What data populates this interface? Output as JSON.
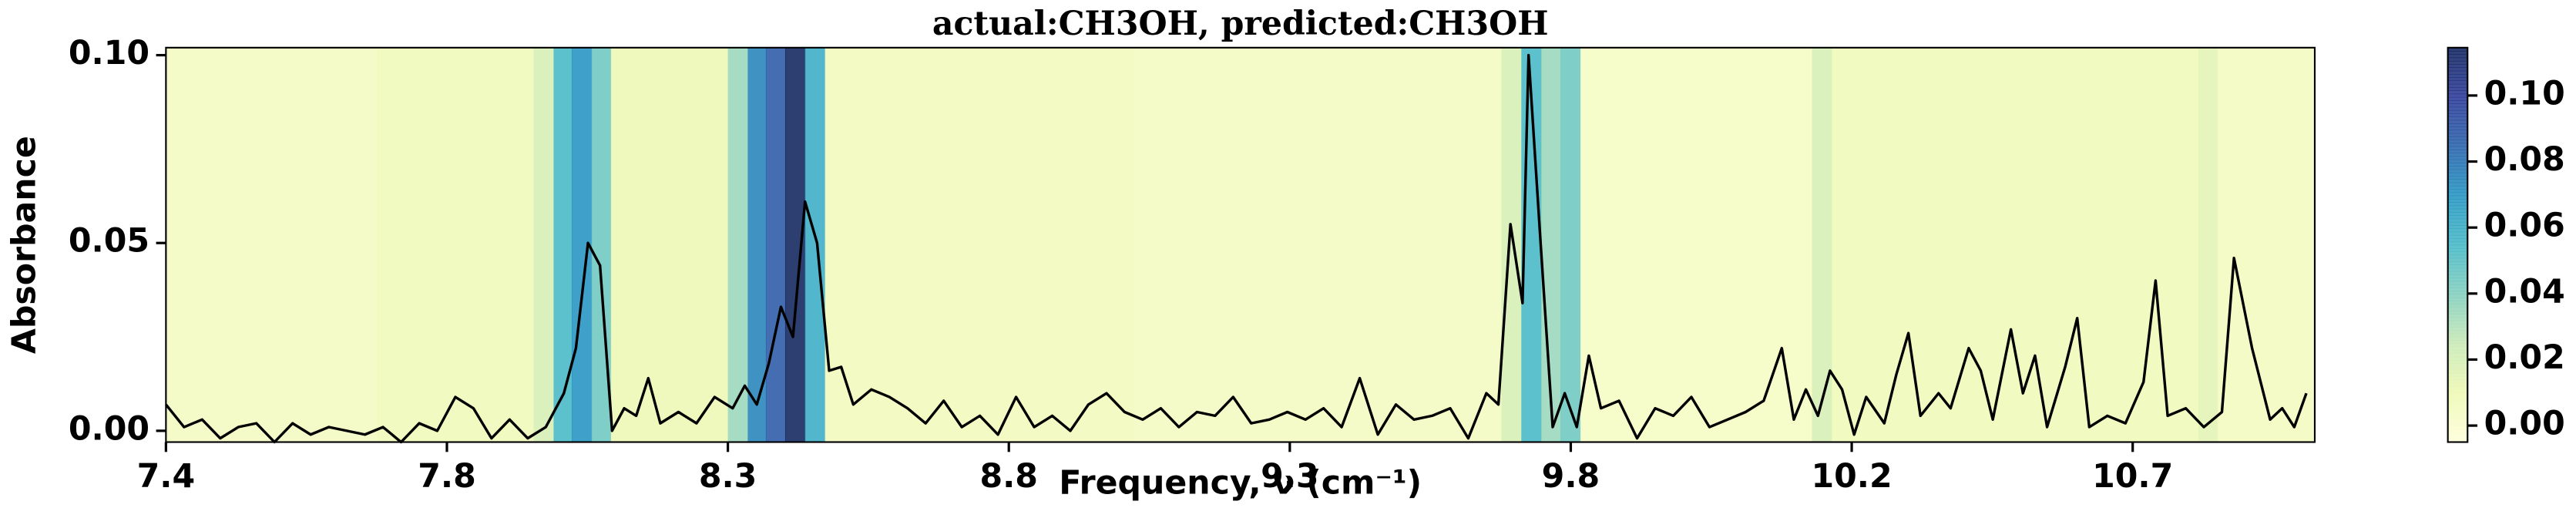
{
  "chart_data": {
    "type": "line",
    "title": "actual:CH3OH, predicted:CH3OH",
    "x_label": "Frequency, ν (cm⁻¹)",
    "y_label": "Absorbance",
    "xlim": [
      7.4,
      10.964
    ],
    "ylim": [
      -0.003,
      0.102
    ],
    "xticks": [
      {
        "value": 7.4,
        "label": "7.4"
      },
      {
        "value": 7.866,
        "label": "7.8"
      },
      {
        "value": 8.332,
        "label": "8.3"
      },
      {
        "value": 8.798,
        "label": "8.8"
      },
      {
        "value": 9.264,
        "label": "9.3"
      },
      {
        "value": 9.73,
        "label": "9.8"
      },
      {
        "value": 10.196,
        "label": "10.2"
      },
      {
        "value": 10.662,
        "label": "10.7"
      }
    ],
    "yticks": [
      {
        "value": 0,
        "label": "0.00"
      },
      {
        "value": 0.05,
        "label": "0.05"
      },
      {
        "value": 0.1,
        "label": "0.10"
      }
    ],
    "x": [
      7.4,
      7.43,
      7.46,
      7.49,
      7.52,
      7.55,
      7.58,
      7.61,
      7.64,
      7.67,
      7.7,
      7.73,
      7.76,
      7.79,
      7.82,
      7.85,
      7.88,
      7.91,
      7.94,
      7.97,
      8.0,
      8.03,
      8.06,
      8.08,
      8.1,
      8.12,
      8.14,
      8.16,
      8.18,
      8.2,
      8.22,
      8.25,
      8.28,
      8.31,
      8.34,
      8.36,
      8.38,
      8.4,
      8.42,
      8.44,
      8.46,
      8.48,
      8.5,
      8.52,
      8.54,
      8.57,
      8.6,
      8.63,
      8.66,
      8.69,
      8.72,
      8.75,
      8.78,
      8.81,
      8.84,
      8.87,
      8.9,
      8.93,
      8.96,
      8.99,
      9.02,
      9.05,
      9.08,
      9.11,
      9.14,
      9.17,
      9.2,
      9.23,
      9.26,
      9.29,
      9.32,
      9.35,
      9.38,
      9.41,
      9.44,
      9.47,
      9.5,
      9.53,
      9.56,
      9.59,
      9.61,
      9.63,
      9.65,
      9.66,
      9.68,
      9.7,
      9.72,
      9.74,
      9.76,
      9.78,
      9.81,
      9.84,
      9.87,
      9.9,
      9.93,
      9.96,
      9.99,
      10.02,
      10.05,
      10.08,
      10.1,
      10.12,
      10.14,
      10.16,
      10.18,
      10.2,
      10.22,
      10.25,
      10.27,
      10.29,
      10.31,
      10.34,
      10.36,
      10.39,
      10.41,
      10.43,
      10.46,
      10.48,
      10.5,
      10.52,
      10.55,
      10.57,
      10.59,
      10.62,
      10.65,
      10.68,
      10.7,
      10.72,
      10.75,
      10.78,
      10.81,
      10.83,
      10.86,
      10.89,
      10.91,
      10.93,
      10.95
    ],
    "series": [
      {
        "color": "#000000",
        "values": [
          0.007,
          0.001,
          0.003,
          -0.002,
          0.001,
          0.002,
          -0.003,
          0.002,
          -0.001,
          0.001,
          0.0,
          -0.001,
          0.001,
          -0.003,
          0.002,
          0.0,
          0.009,
          0.006,
          -0.002,
          0.003,
          -0.002,
          0.001,
          0.01,
          0.022,
          0.05,
          0.044,
          0.0,
          0.006,
          0.004,
          0.014,
          0.002,
          0.005,
          0.002,
          0.009,
          0.006,
          0.012,
          0.007,
          0.018,
          0.033,
          0.025,
          0.061,
          0.05,
          0.016,
          0.017,
          0.007,
          0.011,
          0.009,
          0.006,
          0.002,
          0.008,
          0.001,
          0.004,
          -0.001,
          0.009,
          0.001,
          0.004,
          0.0,
          0.007,
          0.01,
          0.005,
          0.003,
          0.006,
          0.001,
          0.005,
          0.004,
          0.009,
          0.002,
          0.003,
          0.005,
          0.003,
          0.006,
          0.001,
          0.014,
          -0.001,
          0.007,
          0.003,
          0.004,
          0.006,
          -0.002,
          0.01,
          0.007,
          0.055,
          0.034,
          0.1,
          0.05,
          0.001,
          0.01,
          0.001,
          0.02,
          0.006,
          0.008,
          -0.002,
          0.006,
          0.004,
          0.009,
          0.001,
          0.003,
          0.005,
          0.008,
          0.022,
          0.003,
          0.011,
          0.004,
          0.016,
          0.011,
          -0.001,
          0.009,
          0.002,
          0.015,
          0.026,
          0.004,
          0.01,
          0.006,
          0.022,
          0.016,
          0.003,
          0.027,
          0.01,
          0.02,
          0.001,
          0.017,
          0.03,
          0.001,
          0.004,
          0.002,
          0.013,
          0.04,
          0.004,
          0.006,
          0.001,
          0.005,
          0.046,
          0.022,
          0.003,
          0.006,
          0.001,
          0.01
        ]
      }
    ],
    "heatmap": {
      "bins": [
        7.4,
        7.751,
        8.01,
        8.043,
        8.073,
        8.106,
        8.138,
        8.332,
        8.365,
        8.395,
        8.427,
        8.46,
        8.493,
        9.005,
        9.615,
        9.648,
        9.681,
        9.713,
        9.746,
        10.13,
        10.163,
        10.771,
        10.803,
        10.964
      ],
      "values": [
        0.005,
        0.008,
        0.02,
        0.055,
        0.07,
        0.045,
        0.01,
        0.035,
        0.075,
        0.088,
        0.115,
        0.06,
        0.007,
        0.005,
        0.02,
        0.055,
        0.035,
        0.045,
        0.004,
        0.02,
        0.008,
        0.015,
        0.006
      ]
    },
    "colormap": [
      "#ffffd9",
      "#edf8b1",
      "#c7e9b4",
      "#7fcdbb",
      "#41b6c4",
      "#1d91c0",
      "#225ea8",
      "#253494",
      "#081d58"
    ],
    "clim": [
      -0.005,
      0.1145
    ],
    "cticks": [
      {
        "value": 0,
        "label": "0.00"
      },
      {
        "value": 0.02,
        "label": "0.02"
      },
      {
        "value": 0.04,
        "label": "0.04"
      },
      {
        "value": 0.06,
        "label": "0.06"
      },
      {
        "value": 0.08,
        "label": "0.08"
      },
      {
        "value": 0.1,
        "label": "0.10"
      }
    ]
  }
}
